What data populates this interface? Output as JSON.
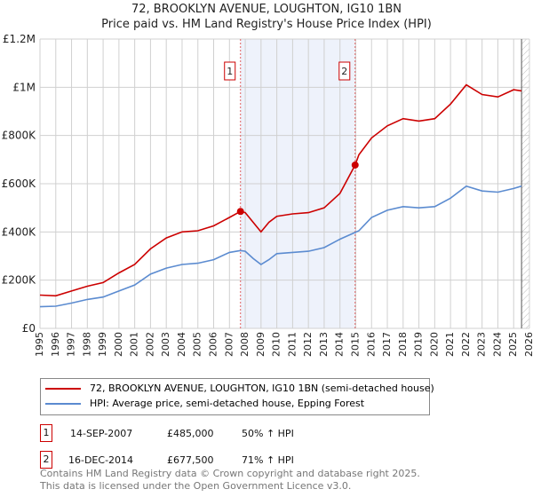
{
  "chart_data": {
    "type": "line",
    "title": "72, BROOKLYN AVENUE, LOUGHTON, IG10 1BN",
    "subtitle": "Price paid vs. HM Land Registry's House Price Index (HPI)",
    "xlim": [
      1995,
      2026
    ],
    "ylim": [
      0,
      1200000
    ],
    "yticks": [
      {
        "v": 0,
        "label": "£0"
      },
      {
        "v": 200000,
        "label": "£200K"
      },
      {
        "v": 400000,
        "label": "£400K"
      },
      {
        "v": 600000,
        "label": "£600K"
      },
      {
        "v": 800000,
        "label": "£800K"
      },
      {
        "v": 1000000,
        "label": "£1M"
      },
      {
        "v": 1200000,
        "label": "£1.2M"
      }
    ],
    "xticks": [
      1995,
      1996,
      1997,
      1998,
      1999,
      2000,
      2001,
      2002,
      2003,
      2004,
      2005,
      2006,
      2007,
      2008,
      2009,
      2010,
      2011,
      2012,
      2013,
      2014,
      2015,
      2016,
      2017,
      2018,
      2019,
      2020,
      2021,
      2022,
      2023,
      2024,
      2025,
      2026
    ],
    "grid": true,
    "shaded_range": [
      2007.7,
      2014.96
    ],
    "forecast_hatch_from": 2025.5,
    "series": [
      {
        "name": "72, BROOKLYN AVENUE, LOUGHTON, IG10 1BN (semi-detached house)",
        "color": "#cc0000",
        "x": [
          1995,
          1996,
          1997,
          1998,
          1999,
          2000,
          2001,
          2002,
          2003,
          2004,
          2005,
          2006,
          2007,
          2007.7,
          2008,
          2008.5,
          2009,
          2009.5,
          2010,
          2011,
          2012,
          2013,
          2014,
          2014.96,
          2015.2,
          2016,
          2017,
          2018,
          2019,
          2020,
          2021,
          2022,
          2023,
          2024,
          2025,
          2025.5
        ],
        "y": [
          138000,
          135000,
          155000,
          175000,
          190000,
          230000,
          265000,
          330000,
          375000,
          400000,
          405000,
          425000,
          460000,
          485000,
          480000,
          440000,
          400000,
          440000,
          465000,
          475000,
          480000,
          500000,
          560000,
          677500,
          720000,
          790000,
          840000,
          870000,
          860000,
          870000,
          930000,
          1010000,
          970000,
          960000,
          990000,
          985000
        ]
      },
      {
        "name": "HPI: Average price, semi-detached house, Epping Forest",
        "color": "#5b8bd0",
        "x": [
          1995,
          1996,
          1997,
          1998,
          1999,
          2000,
          2001,
          2002,
          2003,
          2004,
          2005,
          2006,
          2007,
          2007.7,
          2008,
          2008.5,
          2009,
          2009.5,
          2010,
          2011,
          2012,
          2013,
          2014,
          2014.96,
          2015.2,
          2016,
          2017,
          2018,
          2019,
          2020,
          2021,
          2022,
          2023,
          2024,
          2025,
          2025.5
        ],
        "y": [
          90000,
          92000,
          105000,
          120000,
          130000,
          155000,
          180000,
          225000,
          250000,
          265000,
          270000,
          285000,
          315000,
          323000,
          320000,
          290000,
          265000,
          285000,
          310000,
          315000,
          320000,
          335000,
          370000,
          398000,
          405000,
          460000,
          490000,
          505000,
          500000,
          505000,
          540000,
          590000,
          570000,
          565000,
          580000,
          590000
        ]
      }
    ],
    "sales": [
      {
        "n": "1",
        "x": 2007.7,
        "y": 485000
      },
      {
        "n": "2",
        "x": 2014.96,
        "y": 677500
      }
    ]
  },
  "transactions": [
    {
      "n": "1",
      "date": "14-SEP-2007",
      "price": "£485,000",
      "delta": "50% ↑ HPI"
    },
    {
      "n": "2",
      "date": "16-DEC-2014",
      "price": "£677,500",
      "delta": "71% ↑ HPI"
    }
  ],
  "footer": {
    "line1": "Contains HM Land Registry data © Crown copyright and database right 2025.",
    "line2": "This data is licensed under the Open Government Licence v3.0."
  }
}
